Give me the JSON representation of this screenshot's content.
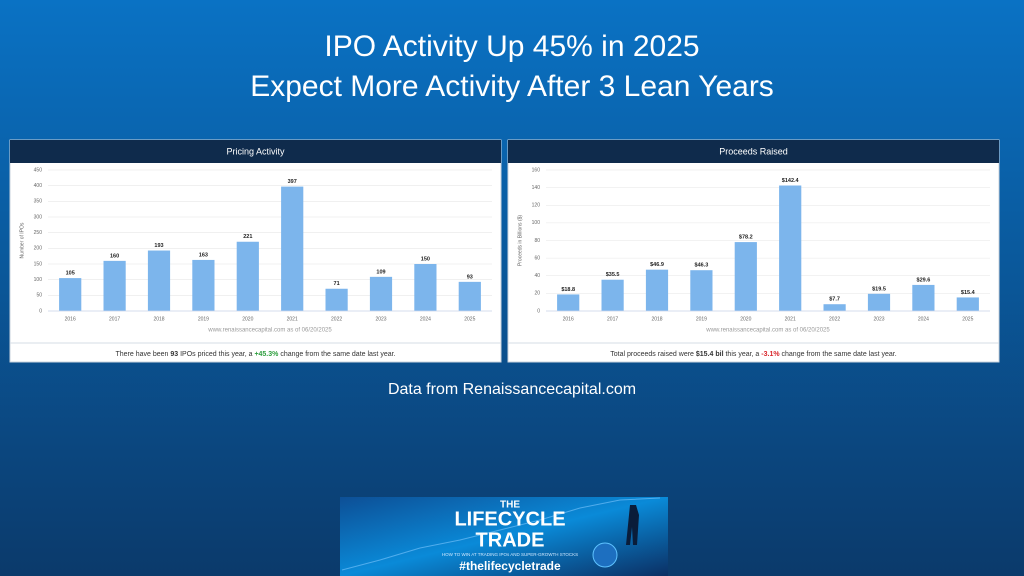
{
  "slide": {
    "title_lines": [
      "IPO Activity Up 45% in 2025",
      "Expect More Activity After 3 Lean Years"
    ],
    "source": "Data from Renaissancecapital.com",
    "banner": {
      "title_top": "THE",
      "title_main": "LIFECYCLE",
      "title_bottom": "TRADE",
      "tagline": "HOW TO WIN AT TRADING IPOs AND SUPER-GROWTH STOCKS",
      "hashtag": "#thelifecycletrade"
    }
  },
  "chart_data": [
    {
      "type": "bar",
      "title": "Pricing Activity",
      "y_label": "Number of IPOs",
      "categories": [
        "2016",
        "2017",
        "2018",
        "2019",
        "2020",
        "2021",
        "2022",
        "2023",
        "2024",
        "2025"
      ],
      "values": [
        105,
        160,
        193,
        163,
        221,
        397,
        71,
        109,
        150,
        93
      ],
      "ylim": [
        0,
        450
      ],
      "yticks": [
        0,
        50,
        100,
        150,
        200,
        250,
        300,
        350,
        400,
        450
      ],
      "color": "#7cb5ec",
      "grid": true,
      "source_note": "www.renaissancecapital.com as of 06/20/2025",
      "caption": [
        {
          "text": "There have been "
        },
        {
          "text": "93",
          "bold": true
        },
        {
          "text": " IPOs priced this year, a "
        },
        {
          "text": "+45.3%",
          "bold": true,
          "color": "#2e9e3e"
        },
        {
          "text": " change from the same date last year."
        }
      ]
    },
    {
      "type": "bar",
      "title": "Proceeds Raised",
      "y_label": "Proceeds in Billions ($)",
      "categories": [
        "2016",
        "2017",
        "2018",
        "2019",
        "2020",
        "2021",
        "2022",
        "2023",
        "2024",
        "2025"
      ],
      "values": [
        18.8,
        35.5,
        46.9,
        46.3,
        78.2,
        142.4,
        7.7,
        19.5,
        29.6,
        15.4
      ],
      "value_labels": [
        "$18.8",
        "$35.5",
        "$46.9",
        "$46.3",
        "$78.2",
        "$142.4",
        "$7.7",
        "$19.5",
        "$29.6",
        "$15.4"
      ],
      "ylim": [
        0,
        160
      ],
      "yticks": [
        0,
        20,
        40,
        60,
        80,
        100,
        120,
        140,
        160
      ],
      "color": "#7cb5ec",
      "grid": true,
      "source_note": "www.renaissancecapital.com as of 06/20/2025",
      "caption": [
        {
          "text": "Total proceeds raised were "
        },
        {
          "text": "$15.4 bil",
          "bold": true
        },
        {
          "text": " this year, a "
        },
        {
          "text": "-3.1%",
          "bold": true,
          "color": "#d9262b"
        },
        {
          "text": " change from the same date last year."
        }
      ]
    }
  ]
}
